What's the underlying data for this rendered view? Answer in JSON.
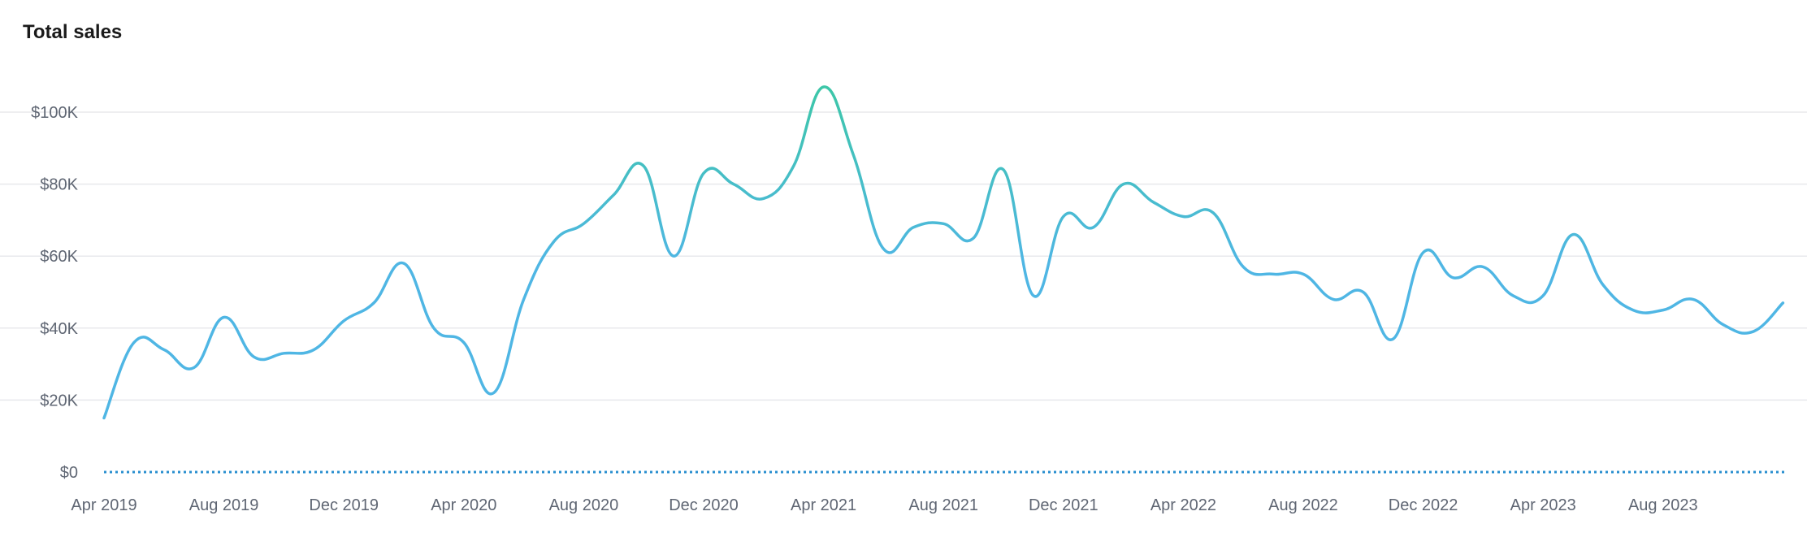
{
  "chart_data": {
    "type": "line",
    "title": "Total sales",
    "xlabel": "",
    "ylabel": "",
    "ylim": [
      0,
      110000
    ],
    "y_ticks": [
      {
        "value": 0,
        "label": "$0"
      },
      {
        "value": 20000,
        "label": "$20K"
      },
      {
        "value": 40000,
        "label": "$40K"
      },
      {
        "value": 60000,
        "label": "$60K"
      },
      {
        "value": 80000,
        "label": "$80K"
      },
      {
        "value": 100000,
        "label": "$100K"
      }
    ],
    "x_ticks": [
      "Apr 2019",
      "Aug 2019",
      "Dec 2019",
      "Apr 2020",
      "Aug 2020",
      "Dec 2020",
      "Apr 2021",
      "Aug 2021",
      "Dec 2021",
      "Apr 2022",
      "Aug 2022",
      "Dec 2022",
      "Apr 2023",
      "Aug 2023"
    ],
    "x_start": "2019-04",
    "grid": true,
    "legend": "none",
    "line_colors": [
      "#4fb6e4",
      "#3cc7a6"
    ],
    "baseline_color": "#2a8fcf",
    "series": [
      {
        "values": [
          15000,
          36000,
          34000,
          29000,
          43000,
          32000,
          33000,
          34000,
          42000,
          47000,
          58000,
          40000,
          36000,
          22000,
          48000,
          64000,
          69000,
          77000,
          85000,
          60000,
          83000,
          80000,
          76000,
          85000,
          107000,
          88000,
          62000,
          68000,
          69000,
          65000,
          84000,
          49000,
          71000,
          68000,
          80000,
          75000,
          71000,
          72000,
          57000,
          55000,
          55000,
          48000,
          50000,
          37000,
          61000,
          54000,
          57000,
          49000,
          49000,
          66000,
          52000,
          45000,
          45000,
          48000,
          41000,
          39000,
          47000
        ]
      }
    ]
  }
}
